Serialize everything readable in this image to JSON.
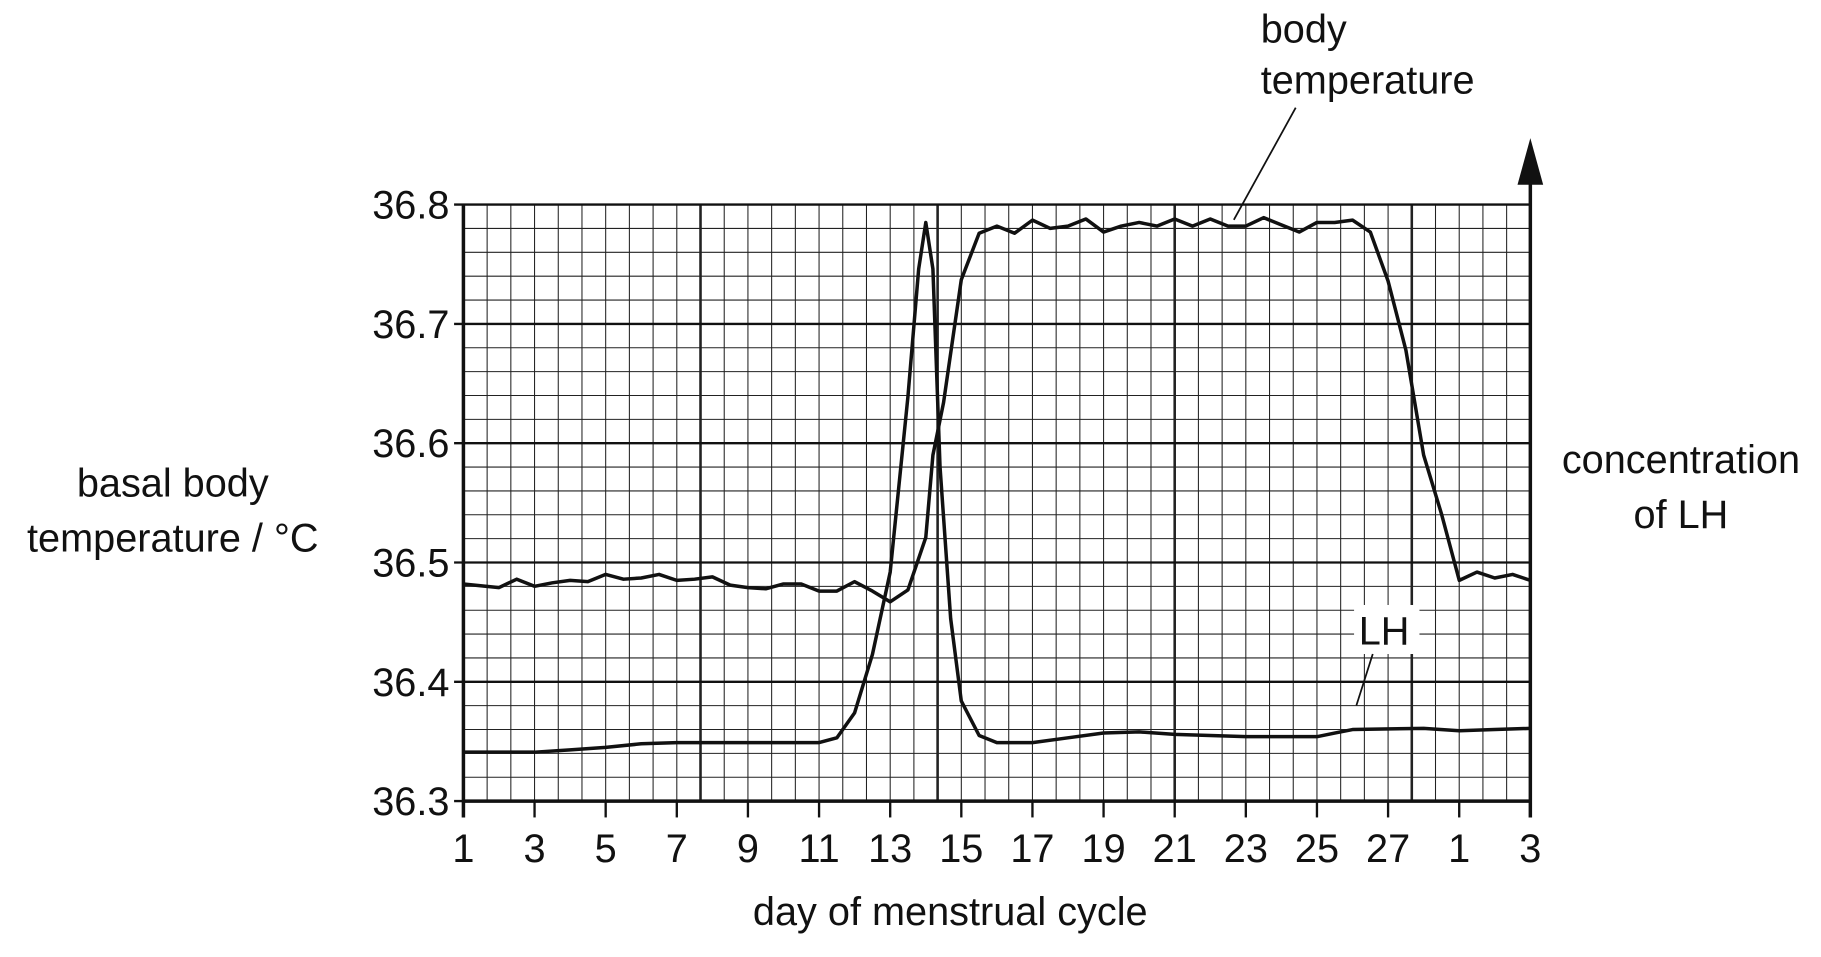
{
  "chart_data": {
    "type": "line",
    "x_label": "day of menstrual cycle",
    "y_label": [
      "basal body",
      "temperature / °C"
    ],
    "y2_label": [
      "concentration",
      "of LH"
    ],
    "xlim": [
      1,
      31
    ],
    "xticks": [
      1,
      3,
      5,
      7,
      9,
      11,
      13,
      15,
      17,
      19,
      21,
      23,
      25,
      27,
      {
        "value": 29,
        "label": "1"
      },
      {
        "value": 31,
        "label": "3"
      }
    ],
    "ylim": [
      36.3,
      36.8
    ],
    "yticks": [
      36.3,
      36.4,
      36.5,
      36.6,
      36.7,
      36.8
    ],
    "grid": true,
    "series": [
      {
        "name": [
          "body",
          "temperature"
        ],
        "color": "#111111",
        "x": [
          1,
          2,
          2.5,
          3,
          3.5,
          4,
          4.5,
          5,
          5.5,
          6,
          6.5,
          7,
          7.5,
          8,
          8.5,
          9,
          9.5,
          10,
          10.5,
          11,
          11.5,
          12,
          12.5,
          13,
          13.5,
          14,
          14.2,
          14.5,
          15,
          15.5,
          16,
          16.5,
          17,
          17.5,
          18,
          18.5,
          19,
          19.5,
          20,
          20.5,
          21,
          21.5,
          22,
          22.5,
          23,
          23.5,
          24,
          24.5,
          25,
          25.5,
          26,
          26.5,
          27,
          27.5,
          28,
          28.5,
          29,
          29.5,
          30,
          30.5,
          31
        ],
        "values": [
          36.482,
          36.479,
          36.486,
          36.48,
          36.483,
          36.485,
          36.484,
          36.49,
          36.486,
          36.487,
          36.49,
          36.485,
          36.486,
          36.488,
          36.481,
          36.479,
          36.478,
          36.482,
          36.482,
          36.476,
          36.476,
          36.484,
          36.476,
          36.467,
          36.477,
          36.521,
          36.59,
          36.634,
          36.737,
          36.776,
          36.782,
          36.776,
          36.787,
          36.78,
          36.782,
          36.788,
          36.777,
          36.782,
          36.785,
          36.782,
          36.788,
          36.782,
          36.788,
          36.782,
          36.782,
          36.789,
          36.783,
          36.777,
          36.785,
          36.785,
          36.787,
          36.777,
          36.736,
          36.678,
          36.59,
          36.541,
          36.485,
          36.492,
          36.487,
          36.49,
          36.485
        ]
      },
      {
        "name": "LH",
        "color": "#111111",
        "x": [
          1,
          3,
          4,
          5,
          6,
          7,
          11,
          11.5,
          12,
          12.5,
          13,
          13.5,
          13.8,
          14,
          14.2,
          14.4,
          14.7,
          15,
          15.5,
          16,
          17,
          18,
          19,
          20,
          21,
          22,
          23,
          25,
          25.5,
          26,
          28,
          29,
          30,
          31
        ],
        "values": [
          36.341,
          36.341,
          36.343,
          36.345,
          36.348,
          36.349,
          36.349,
          36.353,
          36.374,
          36.423,
          36.492,
          36.639,
          36.746,
          36.785,
          36.746,
          36.58,
          36.453,
          36.384,
          36.355,
          36.349,
          36.349,
          36.353,
          36.357,
          36.358,
          36.356,
          36.355,
          36.354,
          36.354,
          36.357,
          36.36,
          36.361,
          36.359,
          36.36,
          36.361
        ]
      }
    ]
  }
}
